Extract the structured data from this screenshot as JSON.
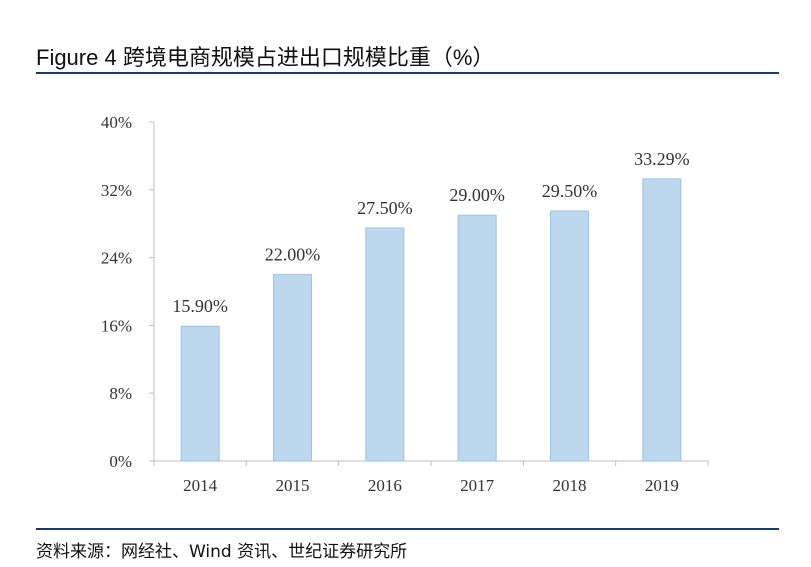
{
  "header": {
    "title": "Figure 4 跨境电商规模占进出口规模比重（%）"
  },
  "footer": {
    "source": "资料来源：网经社、Wind 资讯、世纪证券研究所"
  },
  "colors": {
    "bar": "#bdd7ee",
    "bar_stroke": "#9dc3e6",
    "axis": "#bfbfbf",
    "rule": "#1f3a5a",
    "text": "#333333"
  },
  "chart_data": {
    "type": "bar",
    "title": "跨境电商规模占进出口规模比重（%）",
    "categories": [
      "2014",
      "2015",
      "2016",
      "2017",
      "2018",
      "2019"
    ],
    "values": [
      15.9,
      22.0,
      27.5,
      29.0,
      29.5,
      33.29
    ],
    "data_labels": [
      "15.90%",
      "22.00%",
      "27.50%",
      "29.00%",
      "29.50%",
      "33.29%"
    ],
    "ylim": [
      0,
      40
    ],
    "yticks": [
      0,
      8,
      16,
      24,
      32,
      40
    ],
    "ytick_labels": [
      "0%",
      "8%",
      "16%",
      "24%",
      "32%",
      "40%"
    ],
    "xlabel": "",
    "ylabel": "",
    "grid": false,
    "legend": "none"
  }
}
